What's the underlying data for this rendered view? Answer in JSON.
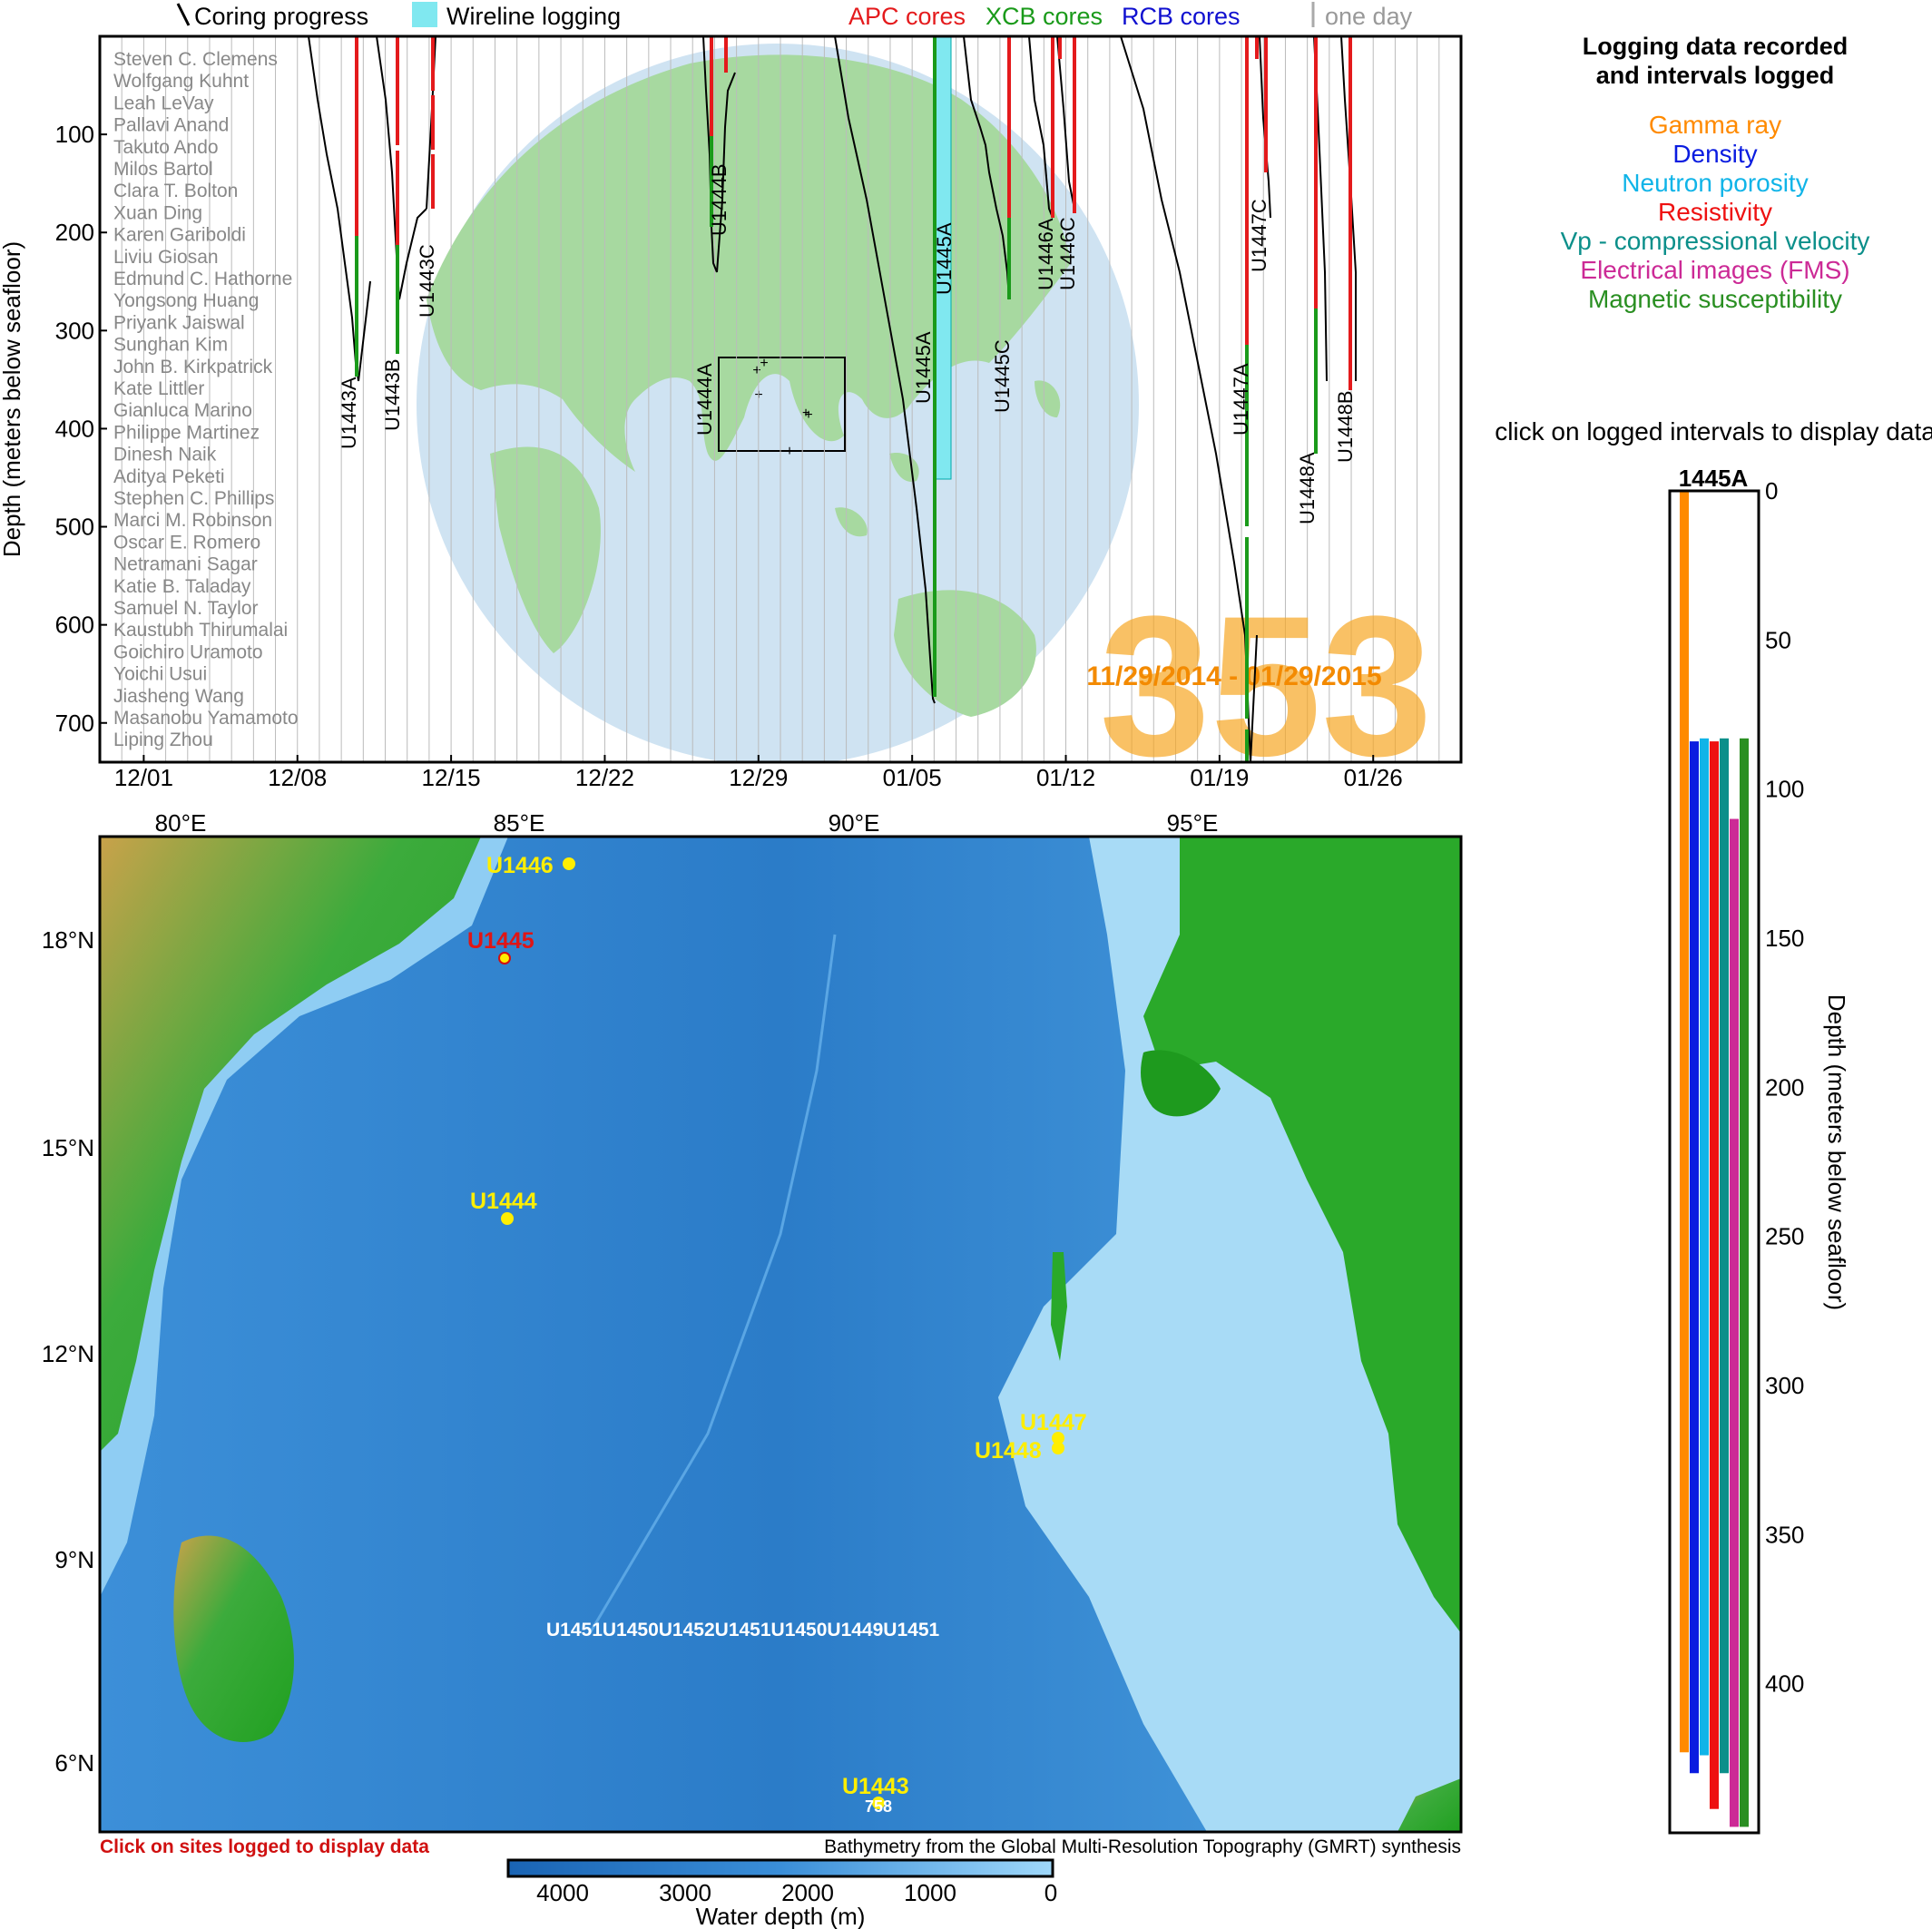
{
  "header_legend": {
    "coring_progress": "Coring progress",
    "wireline_logging": "Wireline logging",
    "apc": "APC cores",
    "xcb": "XCB cores",
    "rcb": "RCB cores",
    "one_day": "one day"
  },
  "colors": {
    "apc": "#e41a1c",
    "xcb": "#1a9a1a",
    "rcb": "#1010d0",
    "wireline": "#80e8f0",
    "expedition": "#f6a623",
    "land": "#a7d9a0",
    "ocean": "#cfe3f2",
    "gamma": "#ff8a00",
    "density": "#0a1ce0",
    "neutron": "#10b4e8",
    "resistivity": "#ee1111",
    "vp": "#0b8f8a",
    "fms": "#cc2a96",
    "magsus": "#2a8f22"
  },
  "timeline": {
    "y_axis_label": "Depth (meters below seafloor)",
    "y_ticks": [
      "100",
      "200",
      "300",
      "400",
      "500",
      "600",
      "700"
    ],
    "x_ticks": [
      "12/01",
      "12/08",
      "12/15",
      "12/22",
      "12/29",
      "01/05",
      "01/12",
      "01/19",
      "01/26"
    ],
    "expedition_number": "353",
    "date_range": "11/29/2014 - 01/29/2015",
    "scientists": [
      "Steven C. Clemens",
      "Wolfgang Kuhnt",
      "Leah LeVay",
      "Pallavi Anand",
      "Takuto Ando",
      "Milos Bartol",
      "Clara T. Bolton",
      "Xuan Ding",
      "Karen Gariboldi",
      "Liviu Giosan",
      "Edmund C. Hathorne",
      "Yongsong Huang",
      "Priyank Jaiswal",
      "Sunghan Kim",
      "John B. Kirkpatrick",
      "Kate Littler",
      "Gianluca Marino",
      "Philippe Martinez",
      "Dinesh Naik",
      "Aditya Peketi",
      "Stephen C. Phillips",
      "Marci M. Robinson",
      "Oscar E. Romero",
      "Netramani Sagar",
      "Katie B. Taladay",
      "Samuel N. Taylor",
      "Kaustubh Thirumalai",
      "Goichiro Uramoto",
      "Yoichi Usui",
      "Jiasheng Wang",
      "Masanobu Yamamoto",
      "Liping Zhou"
    ],
    "holes": [
      {
        "label": "U1443A"
      },
      {
        "label": "U1443B"
      },
      {
        "label": "U1443C"
      },
      {
        "label": "U1444A"
      },
      {
        "label": "U1444B"
      },
      {
        "label": "U1445A"
      },
      {
        "label": "U1445A"
      },
      {
        "label": "U1445C"
      },
      {
        "label": "U1446A"
      },
      {
        "label": "U1446C"
      },
      {
        "label": "U1447A"
      },
      {
        "label": "U1447C"
      },
      {
        "label": "U1448A"
      },
      {
        "label": "U1448B"
      }
    ]
  },
  "logging_legend": {
    "title_line1": "Logging data recorded",
    "title_line2": "and intervals logged",
    "items": [
      "Gamma ray",
      "Density",
      "Neutron porosity",
      "Resistivity",
      "Vp - compressional velocity",
      "Electrical images (FMS)",
      "Magnetic susceptibility"
    ],
    "instruction": "click on logged intervals to display data"
  },
  "well": {
    "hole": "1445A",
    "depth_ticks": [
      "0",
      "50",
      "100",
      "150",
      "200",
      "250",
      "300",
      "350",
      "400"
    ],
    "axis_label": "Depth (meters below seafloor)",
    "intervals": [
      {
        "name": "Gamma ray",
        "top": 0,
        "bottom": 423
      },
      {
        "name": "Density",
        "top": 84,
        "bottom": 430
      },
      {
        "name": "Neutron porosity",
        "top": 83,
        "bottom": 424
      },
      {
        "name": "Resistivity",
        "top": 84,
        "bottom": 442
      },
      {
        "name": "Vp - compressional velocity",
        "top": 83,
        "bottom": 430
      },
      {
        "name": "Electrical images (FMS)",
        "top": 110,
        "bottom": 448
      },
      {
        "name": "Magnetic susceptibility",
        "top": 83,
        "bottom": 448
      }
    ]
  },
  "map": {
    "lon_ticks": [
      "80°E",
      "85°E",
      "90°E",
      "95°E"
    ],
    "lat_ticks": [
      "18°N",
      "15°N",
      "12°N",
      "9°N",
      "6°N"
    ],
    "sites": [
      {
        "label": "U1446",
        "logged": false
      },
      {
        "label": "U1445",
        "logged": true
      },
      {
        "label": "U1444",
        "logged": false
      },
      {
        "label": "U1447",
        "logged": false
      },
      {
        "label": "U1448",
        "logged": false
      },
      {
        "label": "U1443",
        "logged": false
      }
    ],
    "cluster_label": "U1451U1450U1452U1451U1450U1449U1451",
    "small_label": "758",
    "click_note": "Click on sites logged to display data",
    "credit": "Bathymetry from the Global Multi-Resolution Topography (GMRT) synthesis",
    "colorbar_ticks": [
      "4000",
      "3000",
      "2000",
      "1000",
      "0"
    ],
    "colorbar_label": "Water depth (m)"
  }
}
